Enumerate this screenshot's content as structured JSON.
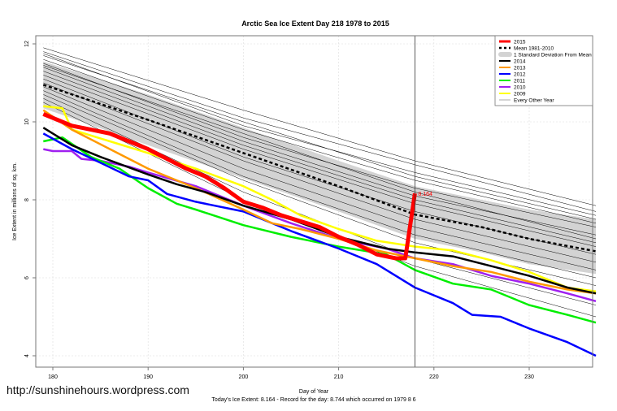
{
  "watermark_url": "http://sunshinehours.wordpress.com",
  "chart_data": {
    "type": "line",
    "title": "Arctic Sea Ice Extent Day 218 1978 to 2015",
    "xlabel": "Day of Year",
    "ylabel": "Ice Extent in millions of sq. km.",
    "subtitle": "Today's Ice Extent: 8.164  - Record for the day: 8.744 which occurred on 1979 8 6",
    "xlim": [
      178,
      238
    ],
    "ylim": [
      3.7,
      12.2
    ],
    "xticks": [
      180,
      190,
      200,
      210,
      220,
      230
    ],
    "yticks": [
      4,
      6,
      8,
      10,
      12
    ],
    "grid": true,
    "legend_position": "top-right",
    "current_day": 218,
    "current_value_label": "8.164",
    "band": {
      "name": "1 Standard Deviation From Mean",
      "color": "#d3d3d3",
      "x": [
        179,
        190,
        200,
        210,
        218,
        225,
        230,
        237
      ],
      "upper": [
        11.55,
        10.7,
        9.85,
        9.0,
        8.35,
        8.0,
        7.75,
        7.5
      ],
      "lower": [
        10.35,
        9.4,
        8.55,
        7.7,
        7.0,
        6.65,
        6.35,
        6.1
      ]
    },
    "mean": {
      "name": "Mean 1981-2010",
      "color": "#000000",
      "x": [
        179,
        190,
        200,
        210,
        218,
        225,
        230,
        237
      ],
      "y": [
        10.95,
        10.05,
        9.2,
        8.35,
        7.62,
        7.3,
        7.0,
        6.68
      ]
    },
    "series": [
      {
        "name": "2015",
        "color": "#ff0000",
        "x": [
          179,
          180,
          182,
          184,
          186,
          188,
          190,
          192,
          194,
          196,
          198,
          200,
          202,
          204,
          206,
          208,
          210,
          212,
          214,
          216,
          217,
          218
        ],
        "y": [
          10.2,
          10.1,
          9.9,
          9.8,
          9.7,
          9.5,
          9.3,
          9.05,
          8.8,
          8.6,
          8.3,
          7.95,
          7.8,
          7.6,
          7.45,
          7.3,
          7.05,
          6.85,
          6.6,
          6.5,
          6.5,
          8.164
        ]
      },
      {
        "name": "2014",
        "color": "#000000",
        "x": [
          179,
          182,
          185,
          190,
          193,
          196,
          200,
          205,
          210,
          215,
          218,
          222,
          226,
          230,
          234,
          237
        ],
        "y": [
          9.85,
          9.4,
          9.1,
          8.65,
          8.4,
          8.2,
          7.85,
          7.5,
          7.05,
          6.75,
          6.65,
          6.55,
          6.3,
          6.05,
          5.75,
          5.6
        ]
      },
      {
        "name": "2013",
        "color": "#ff9900",
        "x": [
          179,
          182,
          186,
          190,
          195,
          200,
          203,
          206,
          210,
          214,
          218,
          222,
          226,
          230,
          234,
          237
        ],
        "y": [
          10.3,
          9.8,
          9.3,
          8.8,
          8.3,
          7.75,
          7.4,
          7.25,
          7.0,
          6.7,
          6.5,
          6.3,
          6.15,
          5.9,
          5.7,
          5.6
        ]
      },
      {
        "name": "2012",
        "color": "#0000ff",
        "x": [
          179,
          182,
          185,
          188,
          190,
          192,
          195,
          200,
          205,
          210,
          214,
          218,
          222,
          224,
          227,
          230,
          234,
          237
        ],
        "y": [
          9.7,
          9.3,
          8.95,
          8.6,
          8.5,
          8.15,
          7.95,
          7.7,
          7.2,
          6.75,
          6.35,
          5.75,
          5.35,
          5.05,
          5.0,
          4.7,
          4.35,
          4.0
        ]
      },
      {
        "name": "2011",
        "color": "#00ee00",
        "x": [
          179,
          181,
          184,
          187,
          190,
          193,
          195,
          200,
          205,
          210,
          215,
          218,
          222,
          226,
          230,
          234,
          237
        ],
        "y": [
          9.5,
          9.6,
          9.1,
          8.8,
          8.3,
          7.9,
          7.75,
          7.35,
          7.05,
          6.8,
          6.6,
          6.2,
          5.85,
          5.7,
          5.3,
          5.05,
          4.85
        ]
      },
      {
        "name": "2010",
        "color": "#a020f0",
        "x": [
          179,
          180,
          182,
          183,
          185,
          188,
          190,
          195,
          200,
          205,
          210,
          215,
          218,
          222,
          226,
          230,
          234,
          237
        ],
        "y": [
          9.3,
          9.25,
          9.25,
          9.05,
          9.0,
          8.85,
          8.7,
          8.35,
          7.85,
          7.4,
          7.0,
          6.75,
          6.5,
          6.35,
          6.05,
          5.85,
          5.6,
          5.4
        ]
      },
      {
        "name": "2009",
        "color": "#ffff00",
        "x": [
          179,
          181,
          182,
          186,
          190,
          195,
          200,
          203,
          206,
          210,
          214,
          218,
          222,
          226,
          230,
          234,
          237
        ],
        "y": [
          10.4,
          10.35,
          9.8,
          9.5,
          9.2,
          8.8,
          8.35,
          8.0,
          7.6,
          7.25,
          6.95,
          6.8,
          6.7,
          6.45,
          6.15,
          5.75,
          5.65
        ]
      }
    ],
    "other_years": {
      "name": "Every Other Year",
      "color": "#000000",
      "x": [
        179,
        200,
        218,
        237
      ],
      "lines": [
        [
          11.9,
          10.3,
          9.0,
          7.85
        ],
        [
          11.8,
          10.1,
          8.9,
          7.7
        ],
        [
          11.7,
          10.0,
          8.6,
          7.5
        ],
        [
          11.6,
          9.8,
          8.5,
          7.4
        ],
        [
          11.5,
          9.6,
          8.3,
          7.3
        ],
        [
          11.4,
          9.5,
          8.1,
          7.1
        ],
        [
          11.3,
          9.4,
          8.0,
          6.9
        ],
        [
          11.2,
          9.3,
          7.9,
          6.8
        ],
        [
          11.1,
          9.1,
          7.7,
          6.6
        ],
        [
          11.0,
          9.0,
          7.5,
          6.4
        ],
        [
          10.9,
          8.8,
          7.3,
          6.2
        ],
        [
          10.8,
          8.6,
          7.1,
          6.0
        ],
        [
          10.7,
          8.5,
          6.9,
          5.8
        ],
        [
          10.6,
          8.2,
          6.5,
          5.3
        ],
        [
          10.5,
          8.0,
          6.3,
          5.0
        ],
        [
          11.75,
          9.9,
          8.7,
          7.6
        ],
        [
          11.45,
          9.7,
          8.2,
          7.0
        ]
      ]
    },
    "legend": [
      "2015",
      "Mean 1981-2010",
      "1 Standard Deviation From Mean",
      "2014",
      "2013",
      "2012",
      "2011",
      "2010",
      "2009",
      "Every Other Year"
    ]
  }
}
